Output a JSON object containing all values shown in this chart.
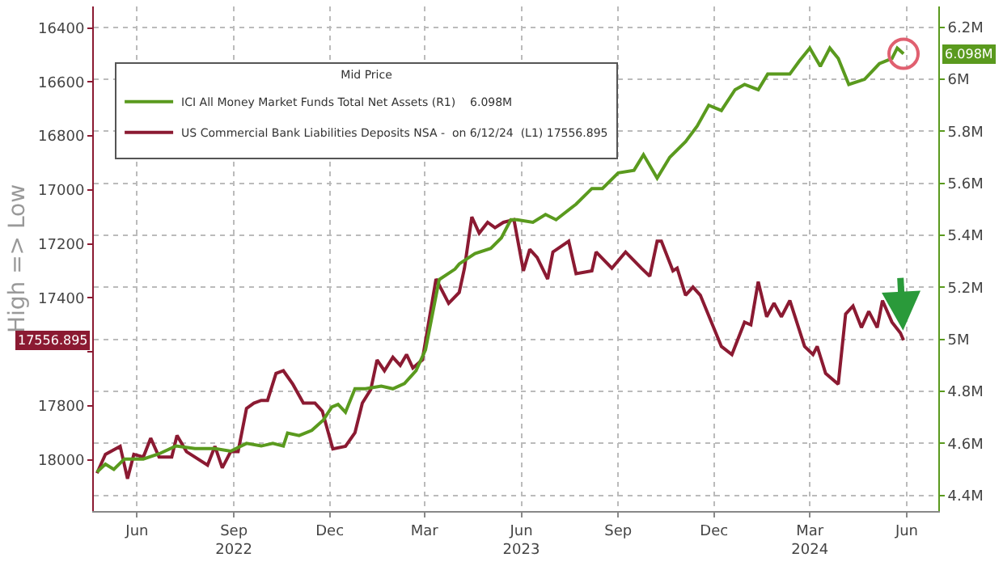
{
  "chart_data": {
    "type": "line",
    "ylabel": "High => Low",
    "legend_title": "Mid Price",
    "legend": "top left",
    "grid": true,
    "xlim": [
      "2022-05-05",
      "2024-07-15"
    ],
    "xticks": [
      {
        "value": "2022-06-15",
        "label": "Jun"
      },
      {
        "value": "2022-09-15",
        "label": "Sep\n2022"
      },
      {
        "value": "2022-12-15",
        "label": "Dec"
      },
      {
        "value": "2023-03-15",
        "label": "Mar"
      },
      {
        "value": "2023-06-15",
        "label": "Jun\n2023"
      },
      {
        "value": "2023-09-15",
        "label": "Sep"
      },
      {
        "value": "2023-12-15",
        "label": "Dec"
      },
      {
        "value": "2024-03-15",
        "label": "Mar\n2024"
      },
      {
        "value": "2024-06-15",
        "label": "Jun"
      }
    ],
    "ylim": [
      18190,
      16320
    ],
    "yticks": [
      16400,
      16600,
      16800,
      17000,
      17200,
      17400,
      {
        "value": 17600,
        "label": null
      },
      17800,
      18000
    ],
    "y2lim": [
      4.34,
      6.28
    ],
    "y2ticks": [
      {
        "value": 4.4,
        "label": "4.4M"
      },
      {
        "value": 4.6,
        "label": "4.6M"
      },
      {
        "value": 4.8,
        "label": "4.8M"
      },
      {
        "value": 5.0,
        "label": "5M"
      },
      {
        "value": 5.2,
        "label": "5.2M"
      },
      {
        "value": 5.4,
        "label": "5.4M"
      },
      {
        "value": 5.6,
        "label": "5.6M"
      },
      {
        "value": 5.8,
        "label": "5.8M"
      },
      {
        "value": 6.0,
        "label": "6M"
      },
      {
        "value": 6.2,
        "label": "6.2M"
      }
    ],
    "series": [
      {
        "name": "ICI All Money Market Funds Total Net Assets (R1)    6.098M",
        "color": "#5a9a1e",
        "axis": "y2",
        "x": [
          "2022-05-08",
          "2022-05-16",
          "2022-05-24",
          "2022-06-03",
          "2022-06-21",
          "2022-07-06",
          "2022-07-22",
          "2022-08-09",
          "2022-08-28",
          "2022-09-12",
          "2022-09-27",
          "2022-10-11",
          "2022-10-22",
          "2022-11-01",
          "2022-11-05",
          "2022-11-16",
          "2022-11-28",
          "2022-12-09",
          "2022-12-17",
          "2022-12-23",
          "2022-12-30",
          "2023-01-08",
          "2023-01-18",
          "2023-02-02",
          "2023-02-13",
          "2023-02-24",
          "2023-03-07",
          "2023-03-16",
          "2023-03-29",
          "2023-04-13",
          "2023-04-17",
          "2023-05-02",
          "2023-05-17",
          "2023-05-27",
          "2023-06-05",
          "2023-06-11",
          "2023-06-26",
          "2023-07-08",
          "2023-07-18",
          "2023-08-06",
          "2023-08-21",
          "2023-08-31",
          "2023-09-15",
          "2023-09-30",
          "2023-10-09",
          "2023-10-22",
          "2023-11-03",
          "2023-11-18",
          "2023-11-29",
          "2023-12-10",
          "2023-12-22",
          "2024-01-04",
          "2024-01-13",
          "2024-01-26",
          "2024-02-04",
          "2024-02-25",
          "2024-03-05",
          "2024-03-15",
          "2024-03-25",
          "2024-04-03",
          "2024-04-11",
          "2024-04-21",
          "2024-05-06",
          "2024-05-20",
          "2024-06-01",
          "2024-06-06",
          "2024-06-12"
        ],
        "values": [
          4.49,
          4.52,
          4.5,
          4.54,
          4.54,
          4.56,
          4.59,
          4.58,
          4.58,
          4.57,
          4.6,
          4.59,
          4.6,
          4.59,
          4.64,
          4.63,
          4.65,
          4.69,
          4.74,
          4.75,
          4.72,
          4.81,
          4.81,
          4.82,
          4.81,
          4.83,
          4.88,
          4.96,
          5.23,
          5.27,
          5.29,
          5.33,
          5.35,
          5.39,
          5.46,
          5.46,
          5.45,
          5.48,
          5.46,
          5.52,
          5.58,
          5.58,
          5.64,
          5.65,
          5.71,
          5.62,
          5.7,
          5.76,
          5.82,
          5.9,
          5.88,
          5.96,
          5.98,
          5.96,
          6.02,
          6.02,
          6.07,
          6.12,
          6.05,
          6.12,
          6.08,
          5.98,
          6.0,
          6.06,
          6.08,
          6.12,
          6.098
        ]
      },
      {
        "name": "US Commercial Bank Liabilities Deposits NSA -  on 6/12/24  (L1) 17556.895",
        "color": "#8b1a32",
        "axis": "y",
        "x": [
          "2022-05-08",
          "2022-05-16",
          "2022-05-30",
          "2022-06-06",
          "2022-06-12",
          "2022-06-21",
          "2022-06-28",
          "2022-07-06",
          "2022-07-18",
          "2022-07-23",
          "2022-08-01",
          "2022-08-21",
          "2022-08-28",
          "2022-09-04",
          "2022-09-12",
          "2022-09-19",
          "2022-09-27",
          "2022-10-04",
          "2022-10-11",
          "2022-10-17",
          "2022-10-25",
          "2022-11-01",
          "2022-11-10",
          "2022-11-20",
          "2022-12-01",
          "2022-12-08",
          "2022-12-18",
          "2022-12-30",
          "2023-01-08",
          "2023-01-15",
          "2023-01-23",
          "2023-01-29",
          "2023-02-05",
          "2023-02-13",
          "2023-02-20",
          "2023-02-26",
          "2023-03-04",
          "2023-03-13",
          "2023-03-26",
          "2023-04-07",
          "2023-04-17",
          "2023-04-22",
          "2023-04-29",
          "2023-05-06",
          "2023-05-14",
          "2023-05-21",
          "2023-05-29",
          "2023-06-08",
          "2023-06-17",
          "2023-06-23",
          "2023-06-30",
          "2023-07-10",
          "2023-07-15",
          "2023-07-30",
          "2023-08-06",
          "2023-08-21",
          "2023-08-25",
          "2023-09-09",
          "2023-09-22",
          "2023-10-07",
          "2023-10-15",
          "2023-10-22",
          "2023-10-26",
          "2023-11-06",
          "2023-11-10",
          "2023-11-18",
          "2023-11-25",
          "2023-12-02",
          "2023-12-22",
          "2024-01-01",
          "2024-01-13",
          "2024-01-19",
          "2024-01-26",
          "2024-02-03",
          "2024-02-10",
          "2024-02-17",
          "2024-02-25",
          "2024-03-10",
          "2024-03-18",
          "2024-03-22",
          "2024-03-30",
          "2024-04-11",
          "2024-04-18",
          "2024-04-25",
          "2024-05-03",
          "2024-05-10",
          "2024-05-18",
          "2024-05-23",
          "2024-06-01",
          "2024-06-09",
          "2024-06-12"
        ],
        "values": [
          18050,
          17980,
          17950,
          18070,
          17980,
          17990,
          17920,
          17990,
          17990,
          17910,
          17970,
          18020,
          17950,
          18030,
          17970,
          17970,
          17810,
          17790,
          17780,
          17780,
          17680,
          17670,
          17720,
          17790,
          17790,
          17820,
          17960,
          17950,
          17900,
          17790,
          17740,
          17630,
          17670,
          17620,
          17650,
          17610,
          17660,
          17630,
          17330,
          17420,
          17380,
          17290,
          17100,
          17160,
          17120,
          17140,
          17120,
          17110,
          17300,
          17220,
          17250,
          17330,
          17230,
          17190,
          17310,
          17300,
          17230,
          17290,
          17230,
          17290,
          17320,
          17190,
          17190,
          17300,
          17290,
          17390,
          17360,
          17390,
          17580,
          17610,
          17490,
          17500,
          17340,
          17470,
          17420,
          17470,
          17410,
          17580,
          17610,
          17580,
          17680,
          17720,
          17460,
          17430,
          17510,
          17450,
          17510,
          17410,
          17490,
          17530,
          17556.895
        ]
      }
    ],
    "annotations": [
      "17556.895",
      "6.098M"
    ]
  }
}
